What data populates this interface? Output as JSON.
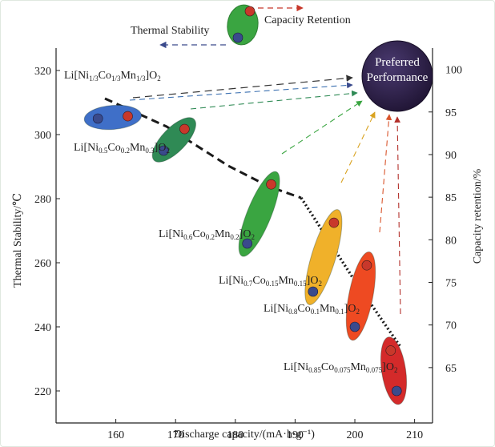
{
  "chart_data": {
    "type": "scatter",
    "title": "",
    "xlabel": "Discharge capacity/(mA·h·g⁻¹)",
    "ylabel_left": "Thermal Stability/℃",
    "ylabel_right": "Capacity retention/%",
    "xlim": [
      150,
      213
    ],
    "ylim_left": [
      210,
      327
    ],
    "ylim_right": [
      58.5,
      102.5
    ],
    "xticks": [
      "160",
      "170",
      "180",
      "190",
      "200",
      "210"
    ],
    "yticks_left": [
      "220",
      "240",
      "260",
      "280",
      "300",
      "320"
    ],
    "yticks_right": [
      "65",
      "70",
      "75",
      "80",
      "85",
      "90",
      "95",
      "100"
    ],
    "legend": {
      "thermal_label": "Thermal Stability",
      "retention_label": "Capacity Retention",
      "thermal_color": "#3a4a8c",
      "retention_color": "#c8382b"
    },
    "preferred": {
      "line1": "Preferred",
      "line2": "Performance",
      "color": "#2c1d45"
    },
    "materials": [
      {
        "label": {
          "prefix": "Li[Ni",
          "s1": "1/3",
          "m1": "Co",
          "s2": "1/3",
          "m2": "Mn",
          "s3": "1/3",
          "m3": "]O",
          "s4": "2"
        },
        "capacity_thermal": 157,
        "thermal": 305,
        "capacity_retention": 162,
        "retention": 94.5,
        "color": "#3f6fc8"
      },
      {
        "label": {
          "prefix": "Li[Ni",
          "s1": "0.5",
          "m1": "Co",
          "s2": "0.2",
          "m2": "Mn",
          "s3": "0.3",
          "m3": "]O",
          "s4": "2"
        },
        "capacity_thermal": 168,
        "thermal": 295,
        "capacity_retention": 171.5,
        "retention": 93,
        "color": "#2f8a55"
      },
      {
        "label": {
          "prefix": "Li[Ni",
          "s1": "0.6",
          "m1": "Co",
          "s2": "0.2",
          "m2": "Mn",
          "s3": "0.2",
          "m3": "]O",
          "s4": "2"
        },
        "capacity_thermal": 182,
        "thermal": 266,
        "capacity_retention": 186,
        "retention": 86.5,
        "color": "#3aa541"
      },
      {
        "label": {
          "prefix": "Li[Ni",
          "s1": "0.7",
          "m1": "Co",
          "s2": "0.15",
          "m2": "Mn",
          "s3": "0.15",
          "m3": "]O",
          "s4": "2"
        },
        "capacity_thermal": 193,
        "thermal": 251,
        "capacity_retention": 196.5,
        "retention": 82,
        "color": "#f0b12a"
      },
      {
        "label": {
          "prefix": "Li[Ni",
          "s1": "0.8",
          "m1": "Co",
          "s2": "0.1",
          "m2": "Mn",
          "s3": "0.1",
          "m3": "]O",
          "s4": "2"
        },
        "capacity_thermal": 200,
        "thermal": 240,
        "capacity_retention": 202,
        "retention": 77,
        "color": "#ee4a22"
      },
      {
        "label": {
          "prefix": "Li[Ni",
          "s1": "0.85",
          "m1": "Co",
          "s2": "0.075",
          "m2": "Mn",
          "s3": "0.075",
          "m3": "]O",
          "s4": "2"
        },
        "capacity_thermal": 207,
        "thermal": 220,
        "capacity_retention": 206,
        "retention": 67,
        "color": "#d42a2a"
      }
    ]
  }
}
